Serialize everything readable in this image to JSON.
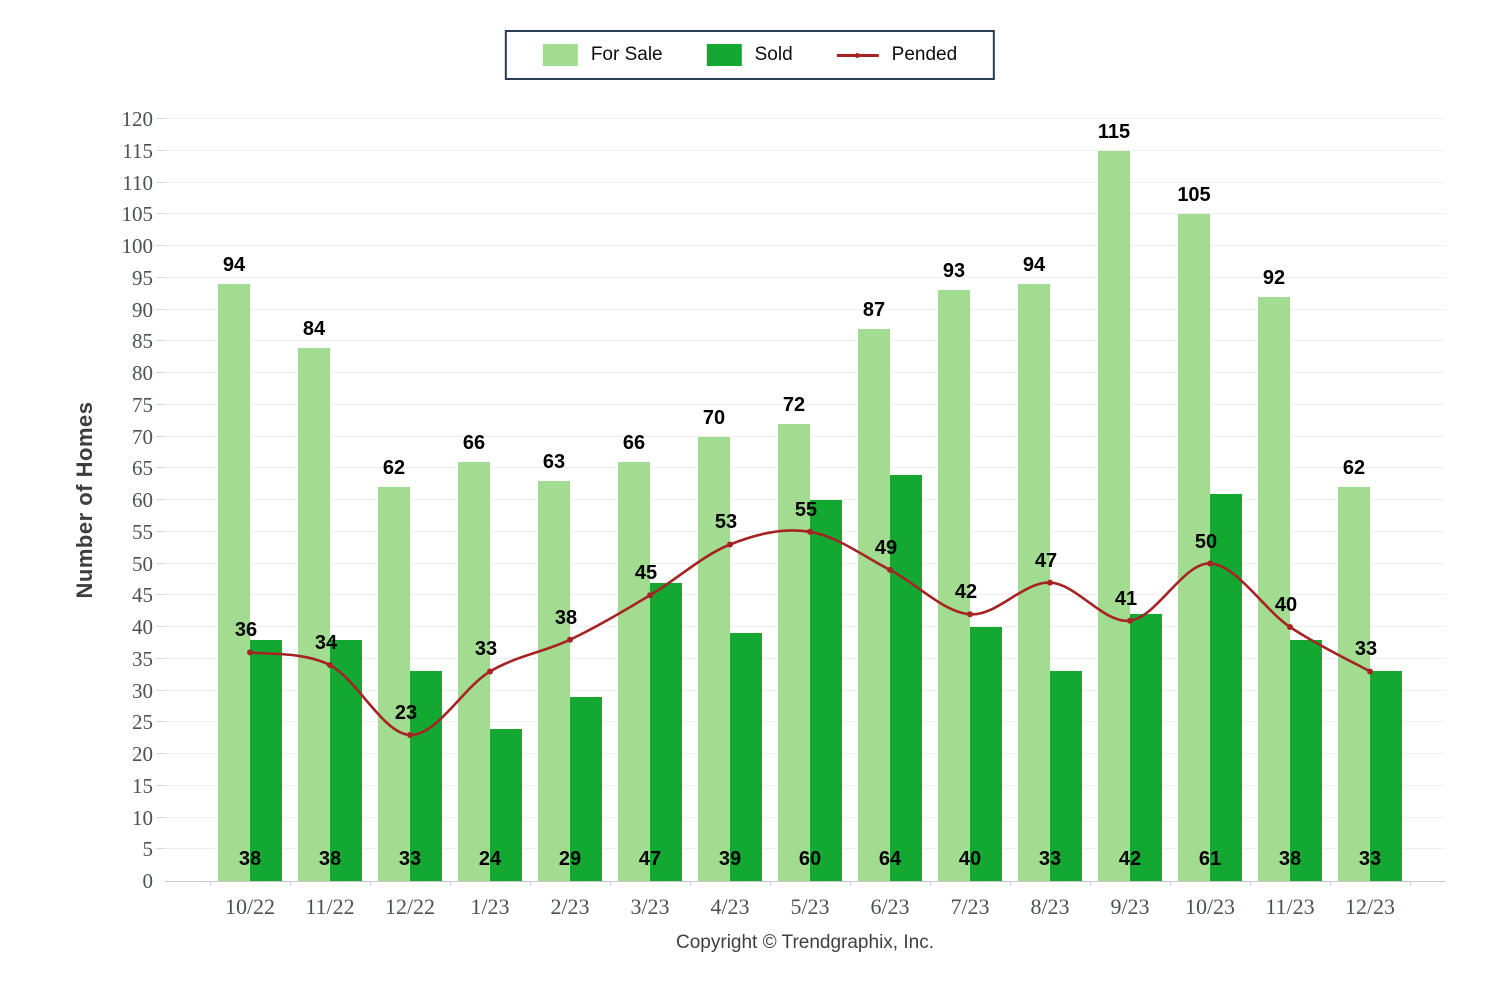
{
  "legend": {
    "items": [
      {
        "label": "For Sale",
        "swatch": "fill",
        "color": "#a2dc90"
      },
      {
        "label": "Sold",
        "swatch": "fill",
        "color": "#12a832"
      },
      {
        "label": "Pended",
        "swatch": "line",
        "color": "#a62324"
      }
    ]
  },
  "footer": "Copyright © Trendgraphix, Inc.",
  "chart_data": {
    "type": "bar",
    "title": "",
    "xlabel": "",
    "ylabel": "Number of Homes",
    "ylim": [
      0,
      120
    ],
    "ytick_step": 5,
    "grid": true,
    "legend_position": "top-center",
    "categories": [
      "10/22",
      "11/22",
      "12/22",
      "1/23",
      "2/23",
      "3/23",
      "4/23",
      "5/23",
      "6/23",
      "7/23",
      "8/23",
      "9/23",
      "10/23",
      "11/23",
      "12/23"
    ],
    "series": [
      {
        "name": "For Sale",
        "render": "bar",
        "color": "#a2dc90",
        "values": [
          94,
          84,
          62,
          66,
          63,
          66,
          70,
          72,
          87,
          93,
          94,
          115,
          105,
          92,
          62
        ]
      },
      {
        "name": "Sold",
        "render": "bar",
        "color": "#12a832",
        "values": [
          38,
          38,
          33,
          24,
          29,
          47,
          39,
          60,
          64,
          40,
          33,
          42,
          61,
          38,
          33
        ]
      },
      {
        "name": "Pended",
        "render": "line",
        "color": "#a62324",
        "values": [
          36,
          34,
          23,
          33,
          38,
          45,
          53,
          55,
          49,
          42,
          47,
          41,
          50,
          40,
          33
        ]
      }
    ]
  }
}
